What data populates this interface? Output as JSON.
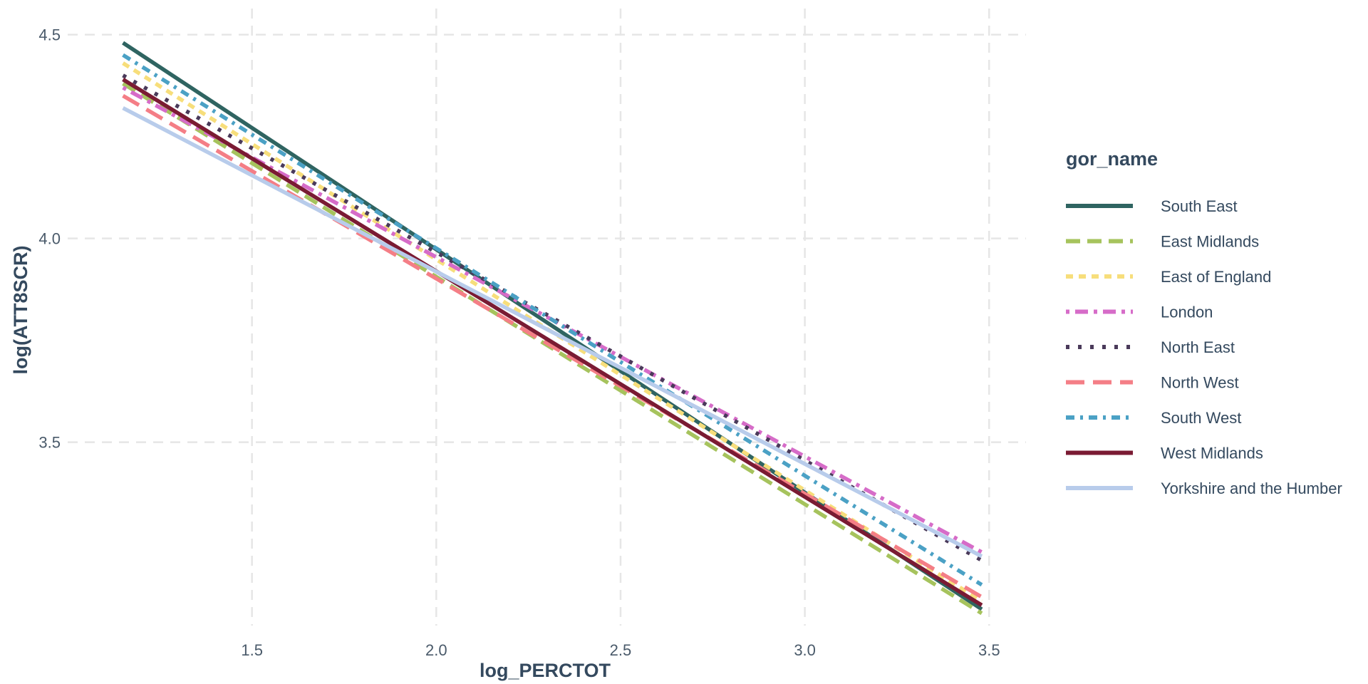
{
  "chart_data": {
    "type": "line",
    "title": "",
    "xlabel": "log_PERCTOT",
    "ylabel": "log(ATT8SCR)",
    "xlim": [
      1.0,
      3.6
    ],
    "ylim": [
      3.05,
      4.55
    ],
    "x_ticks": [
      1.5,
      2.0,
      2.5,
      3.0,
      3.5
    ],
    "x_tick_labels": [
      "1.5",
      "2.0",
      "2.5",
      "3.0",
      "3.5"
    ],
    "y_ticks": [
      3.5,
      4.0,
      4.5
    ],
    "y_tick_labels": [
      "3.5",
      "4.0",
      "4.5"
    ],
    "grid": true,
    "legend": {
      "title": "gor_name",
      "placement": "right"
    },
    "series": [
      {
        "name": "South East",
        "color": "#2f6461",
        "dash": "solid",
        "x": [
          1.15,
          3.48
        ],
        "y": [
          4.48,
          3.09
        ]
      },
      {
        "name": "East Midlands",
        "color": "#a6c35d",
        "dash": "dashed",
        "x": [
          1.15,
          3.48
        ],
        "y": [
          4.38,
          3.08
        ]
      },
      {
        "name": "East of England",
        "color": "#f7de7b",
        "dash": "dotted",
        "x": [
          1.15,
          3.48
        ],
        "y": [
          4.43,
          3.11
        ]
      },
      {
        "name": "London",
        "color": "#d66cc8",
        "dash": "dotdash",
        "x": [
          1.15,
          3.48
        ],
        "y": [
          4.37,
          3.23
        ]
      },
      {
        "name": "North East",
        "color": "#4a3a5a",
        "dash": "dotted-sparse",
        "x": [
          1.15,
          3.48
        ],
        "y": [
          4.4,
          3.21
        ]
      },
      {
        "name": "North West",
        "color": "#f47e86",
        "dash": "longdash",
        "x": [
          1.15,
          3.48
        ],
        "y": [
          4.35,
          3.12
        ]
      },
      {
        "name": "South West",
        "color": "#4ba1c5",
        "dash": "twodash",
        "x": [
          1.15,
          3.48
        ],
        "y": [
          4.45,
          3.15
        ]
      },
      {
        "name": "West Midlands",
        "color": "#7a1b33",
        "dash": "solid",
        "x": [
          1.15,
          3.48
        ],
        "y": [
          4.39,
          3.1
        ]
      },
      {
        "name": "Yorkshire and the Humber",
        "color": "#b8cceb",
        "dash": "solid",
        "x": [
          1.15,
          3.48
        ],
        "y": [
          4.32,
          3.22
        ]
      }
    ]
  }
}
